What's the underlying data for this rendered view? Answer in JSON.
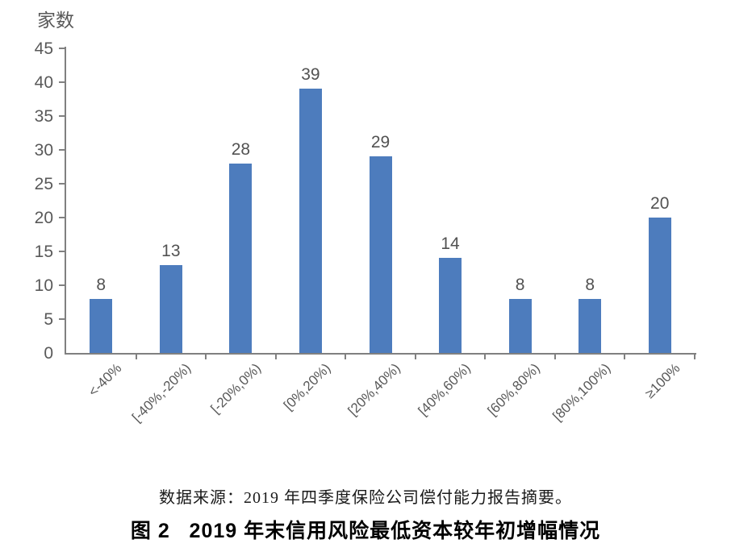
{
  "source_note": "数据来源：2019 年四季度保险公司偿付能力报告摘要。",
  "caption": "图 2   2019 年末信用风险最低资本较年初增幅情况",
  "chart_data": {
    "type": "bar",
    "title": "",
    "xlabel": "",
    "ylabel": "家数",
    "categories": [
      "<-40%",
      "[-40%,-20%)",
      "[-20%,0%)",
      "[0%,20%)",
      "[20%,40%)",
      "[40%,60%)",
      "[60%,80%)",
      "[80%,100%)",
      "≥100%"
    ],
    "values": [
      8,
      13,
      28,
      39,
      29,
      14,
      8,
      8,
      20
    ],
    "ylim": [
      0,
      45
    ],
    "ytick_step": 5,
    "grid": false,
    "legend_position": "none",
    "data_labels": true,
    "x_label_rotation_deg": 45,
    "colors": {
      "bar": "#4D7CBD",
      "axis": "#808080",
      "tick_text": "#595959",
      "value_label_text": "#525252"
    }
  }
}
